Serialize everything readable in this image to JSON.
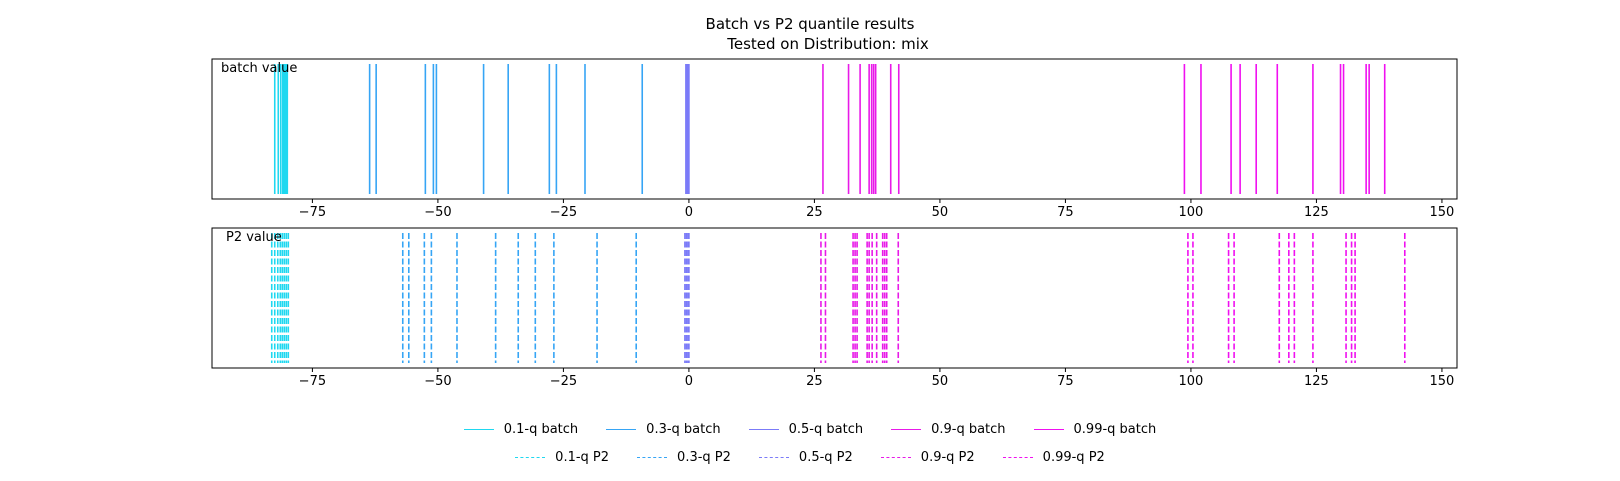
{
  "figure": {
    "title_line1": "Batch vs P2 quantile results",
    "title_line2": "Tested on Distribution: mix"
  },
  "chart_data": [
    {
      "type": "eventplot",
      "panel_label": "batch value",
      "linestyle": "solid",
      "xlim": [
        -95,
        153
      ],
      "xticks": [
        -75,
        -50,
        -25,
        0,
        25,
        50,
        75,
        100,
        125,
        150
      ],
      "series": [
        {
          "name": "0.1-q batch",
          "color": "#1fd8f0",
          "values": [
            -82.5,
            -81.8,
            -81.3,
            -80.9,
            -80.6,
            -80.3,
            -80.0
          ]
        },
        {
          "name": "0.3-q batch",
          "color": "#36a5f5",
          "values": [
            -63.6,
            -62.3,
            -52.5,
            -50.9,
            -50.3,
            -40.9,
            -36.0,
            -27.8,
            -26.4,
            -20.7,
            -9.3
          ]
        },
        {
          "name": "0.5-q batch",
          "color": "#7b7bf8",
          "values": [
            -0.6,
            -0.4,
            -0.2,
            0.0
          ]
        },
        {
          "name": "0.9-q batch",
          "color": "#e81ae8",
          "values": [
            26.7,
            31.8,
            34.1,
            35.9,
            36.4,
            36.8,
            37.2,
            40.2,
            41.8
          ]
        },
        {
          "name": "0.99-q batch",
          "color": "#f010f0",
          "values": [
            98.7,
            102.0,
            108.0,
            109.8,
            113.0,
            117.2,
            124.3,
            129.8,
            130.4,
            134.9,
            135.5,
            138.6
          ]
        }
      ]
    },
    {
      "type": "eventplot",
      "panel_label": "P2 value",
      "linestyle": "dashed",
      "xlim": [
        -95,
        153
      ],
      "xticks": [
        -75,
        -50,
        -25,
        0,
        25,
        50,
        75,
        100,
        125,
        150
      ],
      "series": [
        {
          "name": "0.1-q P2",
          "color": "#1fd8f0",
          "values": [
            -83.1,
            -82.5,
            -81.9,
            -81.4,
            -81.0,
            -80.6,
            -80.2,
            -79.8
          ]
        },
        {
          "name": "0.3-q P2",
          "color": "#36a5f5",
          "values": [
            -57.0,
            -55.8,
            -52.7,
            -51.3,
            -46.2,
            -38.5,
            -34.0,
            -30.6,
            -26.9,
            -18.3,
            -10.5
          ]
        },
        {
          "name": "0.5-q P2",
          "color": "#7b7bf8",
          "values": [
            -0.8,
            -0.5,
            -0.2,
            0.0
          ]
        },
        {
          "name": "0.9-q P2",
          "color": "#e81ae8",
          "values": [
            26.3,
            27.2,
            32.7,
            33.1,
            33.5,
            35.5,
            35.9,
            36.5,
            37.4,
            38.6,
            39.0,
            39.4,
            41.7
          ]
        },
        {
          "name": "0.99-q P2",
          "color": "#f010f0",
          "values": [
            99.4,
            100.4,
            107.5,
            108.6,
            117.6,
            119.5,
            120.6,
            124.3,
            130.9,
            132.0,
            132.7,
            142.6
          ]
        }
      ]
    }
  ],
  "legend": {
    "row1": [
      {
        "label": "0.1-q batch",
        "color": "#1fd8f0",
        "style": "solid"
      },
      {
        "label": "0.3-q batch",
        "color": "#36a5f5",
        "style": "solid"
      },
      {
        "label": "0.5-q batch",
        "color": "#7b7bf8",
        "style": "solid"
      },
      {
        "label": "0.9-q batch",
        "color": "#e81ae8",
        "style": "solid"
      },
      {
        "label": "0.99-q batch",
        "color": "#f010f0",
        "style": "solid"
      }
    ],
    "row2": [
      {
        "label": "0.1-q P2",
        "color": "#1fd8f0",
        "style": "dashed"
      },
      {
        "label": "0.3-q P2",
        "color": "#36a5f5",
        "style": "dashed"
      },
      {
        "label": "0.5-q P2",
        "color": "#7b7bf8",
        "style": "dashed"
      },
      {
        "label": "0.9-q P2",
        "color": "#e81ae8",
        "style": "dashed"
      },
      {
        "label": "0.99-q P2",
        "color": "#f010f0",
        "style": "dashed"
      }
    ]
  }
}
